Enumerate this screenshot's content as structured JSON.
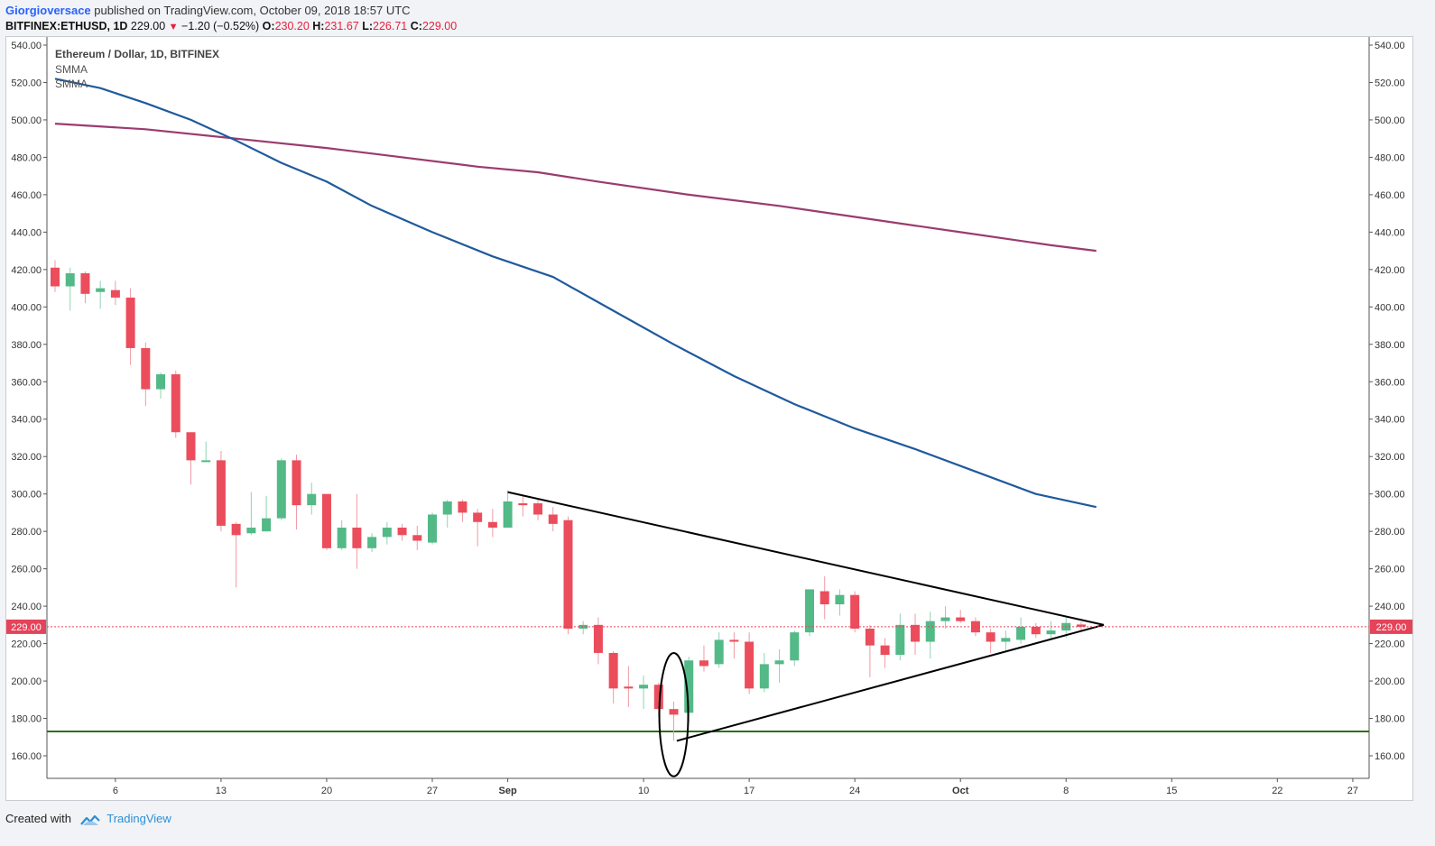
{
  "header": {
    "author": "Giorgioversace",
    "published": "published on TradingView.com, October 09, 2018 18:57 UTC",
    "symbol": "BITFINEX:ETHUSD, 1D",
    "last": "229.00",
    "change": "−1.20 (−0.52%)",
    "o_label": "O:",
    "o_val": "230.20",
    "h_label": "H:",
    "h_val": "231.67",
    "l_label": "L:",
    "l_val": "226.71",
    "c_label": "C:",
    "c_val": "229.00"
  },
  "legend": {
    "title": "Ethereum / Dollar, 1D, BITFINEX",
    "ind1": "SMMA",
    "ind2": "SMMA"
  },
  "footer": {
    "created": "Created with",
    "brand": "TradingView"
  },
  "chart_data": {
    "type": "candlestick",
    "title": "Ethereum / Dollar, 1D, BITFINEX",
    "ylim": [
      150,
      545
    ],
    "yticks": [
      "540.00",
      "520.00",
      "500.00",
      "480.00",
      "460.00",
      "440.00",
      "420.00",
      "400.00",
      "380.00",
      "360.00",
      "340.00",
      "320.00",
      "300.00",
      "280.00",
      "260.00",
      "240.00",
      "220.00",
      "200.00",
      "180.00",
      "160.00"
    ],
    "xticks": [
      {
        "label": "6",
        "day": 4,
        "bold": false
      },
      {
        "label": "13",
        "day": 11,
        "bold": false
      },
      {
        "label": "20",
        "day": 18,
        "bold": false
      },
      {
        "label": "27",
        "day": 25,
        "bold": false
      },
      {
        "label": "Sep",
        "day": 30,
        "bold": true
      },
      {
        "label": "10",
        "day": 39,
        "bold": false
      },
      {
        "label": "17",
        "day": 46,
        "bold": false
      },
      {
        "label": "24",
        "day": 53,
        "bold": false
      },
      {
        "label": "Oct",
        "day": 60,
        "bold": true
      },
      {
        "label": "8",
        "day": 67,
        "bold": false
      },
      {
        "label": "15",
        "day": 74,
        "bold": false
      },
      {
        "label": "22",
        "day": 81,
        "bold": false
      },
      {
        "label": "27",
        "day": 86,
        "bold": false
      }
    ],
    "xlim": [
      -0.5,
      87
    ],
    "candles": [
      {
        "o": 421,
        "h": 425,
        "l": 408,
        "c": 411
      },
      {
        "o": 411,
        "h": 421,
        "l": 398,
        "c": 418
      },
      {
        "o": 418,
        "h": 419,
        "l": 402,
        "c": 407
      },
      {
        "o": 408,
        "h": 414,
        "l": 399,
        "c": 410
      },
      {
        "o": 409,
        "h": 414,
        "l": 401,
        "c": 405
      },
      {
        "o": 405,
        "h": 410,
        "l": 369,
        "c": 378
      },
      {
        "o": 378,
        "h": 381,
        "l": 347,
        "c": 356
      },
      {
        "o": 356,
        "h": 365,
        "l": 351,
        "c": 364
      },
      {
        "o": 364,
        "h": 366,
        "l": 330,
        "c": 333
      },
      {
        "o": 333,
        "h": 333,
        "l": 305,
        "c": 318
      },
      {
        "o": 318,
        "h": 328,
        "l": 317,
        "c": 318
      },
      {
        "o": 318,
        "h": 323,
        "l": 280,
        "c": 283
      },
      {
        "o": 284,
        "h": 285,
        "l": 250,
        "c": 278
      },
      {
        "o": 279,
        "h": 301,
        "l": 278,
        "c": 282
      },
      {
        "o": 280,
        "h": 299,
        "l": 280,
        "c": 287
      },
      {
        "o": 287,
        "h": 319,
        "l": 286,
        "c": 318
      },
      {
        "o": 318,
        "h": 321,
        "l": 281,
        "c": 294
      },
      {
        "o": 294,
        "h": 306,
        "l": 289,
        "c": 300
      },
      {
        "o": 300,
        "h": 300,
        "l": 270,
        "c": 271
      },
      {
        "o": 271,
        "h": 286,
        "l": 270,
        "c": 282
      },
      {
        "o": 282,
        "h": 300,
        "l": 260,
        "c": 271
      },
      {
        "o": 271,
        "h": 279,
        "l": 269,
        "c": 277
      },
      {
        "o": 277,
        "h": 285,
        "l": 273,
        "c": 282
      },
      {
        "o": 282,
        "h": 284,
        "l": 275,
        "c": 278
      },
      {
        "o": 278,
        "h": 283,
        "l": 270,
        "c": 275
      },
      {
        "o": 274,
        "h": 290,
        "l": 273,
        "c": 289
      },
      {
        "o": 289,
        "h": 297,
        "l": 282,
        "c": 296
      },
      {
        "o": 296,
        "h": 297,
        "l": 285,
        "c": 290
      },
      {
        "o": 290,
        "h": 292,
        "l": 272,
        "c": 285
      },
      {
        "o": 285,
        "h": 292,
        "l": 277,
        "c": 282
      },
      {
        "o": 282,
        "h": 302,
        "l": 282,
        "c": 296
      },
      {
        "o": 295,
        "h": 299,
        "l": 288,
        "c": 294
      },
      {
        "o": 295,
        "h": 297,
        "l": 286,
        "c": 289
      },
      {
        "o": 289,
        "h": 293,
        "l": 280,
        "c": 284
      },
      {
        "o": 286,
        "h": 288,
        "l": 225,
        "c": 228
      },
      {
        "o": 228,
        "h": 232,
        "l": 225,
        "c": 230
      },
      {
        "o": 230,
        "h": 234,
        "l": 209,
        "c": 215
      },
      {
        "o": 215,
        "h": 216,
        "l": 188,
        "c": 196
      },
      {
        "o": 197,
        "h": 208,
        "l": 186,
        "c": 196
      },
      {
        "o": 196,
        "h": 203,
        "l": 185,
        "c": 198
      },
      {
        "o": 198,
        "h": 199,
        "l": 181,
        "c": 185
      },
      {
        "o": 185,
        "h": 189,
        "l": 168,
        "c": 182
      },
      {
        "o": 183,
        "h": 213,
        "l": 178,
        "c": 211
      },
      {
        "o": 211,
        "h": 219,
        "l": 205,
        "c": 208
      },
      {
        "o": 209,
        "h": 226,
        "l": 207,
        "c": 222
      },
      {
        "o": 222,
        "h": 226,
        "l": 212,
        "c": 221
      },
      {
        "o": 221,
        "h": 226,
        "l": 193,
        "c": 196
      },
      {
        "o": 196,
        "h": 215,
        "l": 194,
        "c": 209
      },
      {
        "o": 209,
        "h": 217,
        "l": 199,
        "c": 211
      },
      {
        "o": 211,
        "h": 227,
        "l": 208,
        "c": 226
      },
      {
        "o": 226,
        "h": 249,
        "l": 224,
        "c": 249
      },
      {
        "o": 248,
        "h": 256,
        "l": 233,
        "c": 241
      },
      {
        "o": 241,
        "h": 249,
        "l": 235,
        "c": 246
      },
      {
        "o": 246,
        "h": 248,
        "l": 226,
        "c": 228
      },
      {
        "o": 228,
        "h": 230,
        "l": 202,
        "c": 219
      },
      {
        "o": 219,
        "h": 223,
        "l": 207,
        "c": 214
      },
      {
        "o": 214,
        "h": 236,
        "l": 211,
        "c": 230
      },
      {
        "o": 230,
        "h": 236,
        "l": 214,
        "c": 221
      },
      {
        "o": 221,
        "h": 237,
        "l": 212,
        "c": 232
      },
      {
        "o": 232,
        "h": 240,
        "l": 228,
        "c": 234
      },
      {
        "o": 234,
        "h": 238,
        "l": 231,
        "c": 232
      },
      {
        "o": 232,
        "h": 234,
        "l": 224,
        "c": 226
      },
      {
        "o": 226,
        "h": 228,
        "l": 215,
        "c": 221
      },
      {
        "o": 221,
        "h": 227,
        "l": 216,
        "c": 223
      },
      {
        "o": 222,
        "h": 234,
        "l": 220,
        "c": 229
      },
      {
        "o": 229,
        "h": 231,
        "l": 223,
        "c": 225
      },
      {
        "o": 225,
        "h": 232,
        "l": 222,
        "c": 227
      },
      {
        "o": 227,
        "h": 235,
        "l": 223,
        "c": 231
      },
      {
        "o": 230.2,
        "h": 231.67,
        "l": 226.71,
        "c": 229
      }
    ],
    "smma_slow": {
      "name": "SMMA",
      "color": "#9b3b6e",
      "points": [
        [
          0,
          498
        ],
        [
          6,
          495
        ],
        [
          12,
          490
        ],
        [
          18,
          485
        ],
        [
          22,
          481
        ],
        [
          28,
          475
        ],
        [
          32,
          472
        ],
        [
          36,
          467
        ],
        [
          42,
          460
        ],
        [
          48,
          454
        ],
        [
          54,
          447
        ],
        [
          60,
          440
        ],
        [
          66,
          433
        ],
        [
          69,
          430
        ]
      ]
    },
    "smma_fast": {
      "name": "SMMA",
      "color": "#1f5a9c",
      "points": [
        [
          0,
          522
        ],
        [
          3,
          517
        ],
        [
          6,
          509
        ],
        [
          9,
          500
        ],
        [
          12,
          489
        ],
        [
          15,
          477
        ],
        [
          18,
          467
        ],
        [
          21,
          454
        ],
        [
          25,
          440
        ],
        [
          29,
          427
        ],
        [
          33,
          416
        ],
        [
          37,
          398
        ],
        [
          41,
          380
        ],
        [
          45,
          363
        ],
        [
          49,
          348
        ],
        [
          53,
          335
        ],
        [
          57,
          324
        ],
        [
          61,
          312
        ],
        [
          65,
          300
        ],
        [
          69,
          293
        ]
      ]
    },
    "trend_upper": {
      "color": "#000000",
      "points": [
        [
          30,
          301
        ],
        [
          69.5,
          230
        ]
      ]
    },
    "trend_lower": {
      "color": "#000000",
      "points": [
        [
          41.2,
          168
        ],
        [
          69.5,
          230
        ]
      ]
    },
    "support_line": {
      "value": 173,
      "color": "#2e6f12"
    },
    "last_price": {
      "value": 229,
      "label": "229.00",
      "color": "#e5435a"
    },
    "highlight_circle": {
      "day": 41,
      "center": 182,
      "ry": 15
    }
  }
}
